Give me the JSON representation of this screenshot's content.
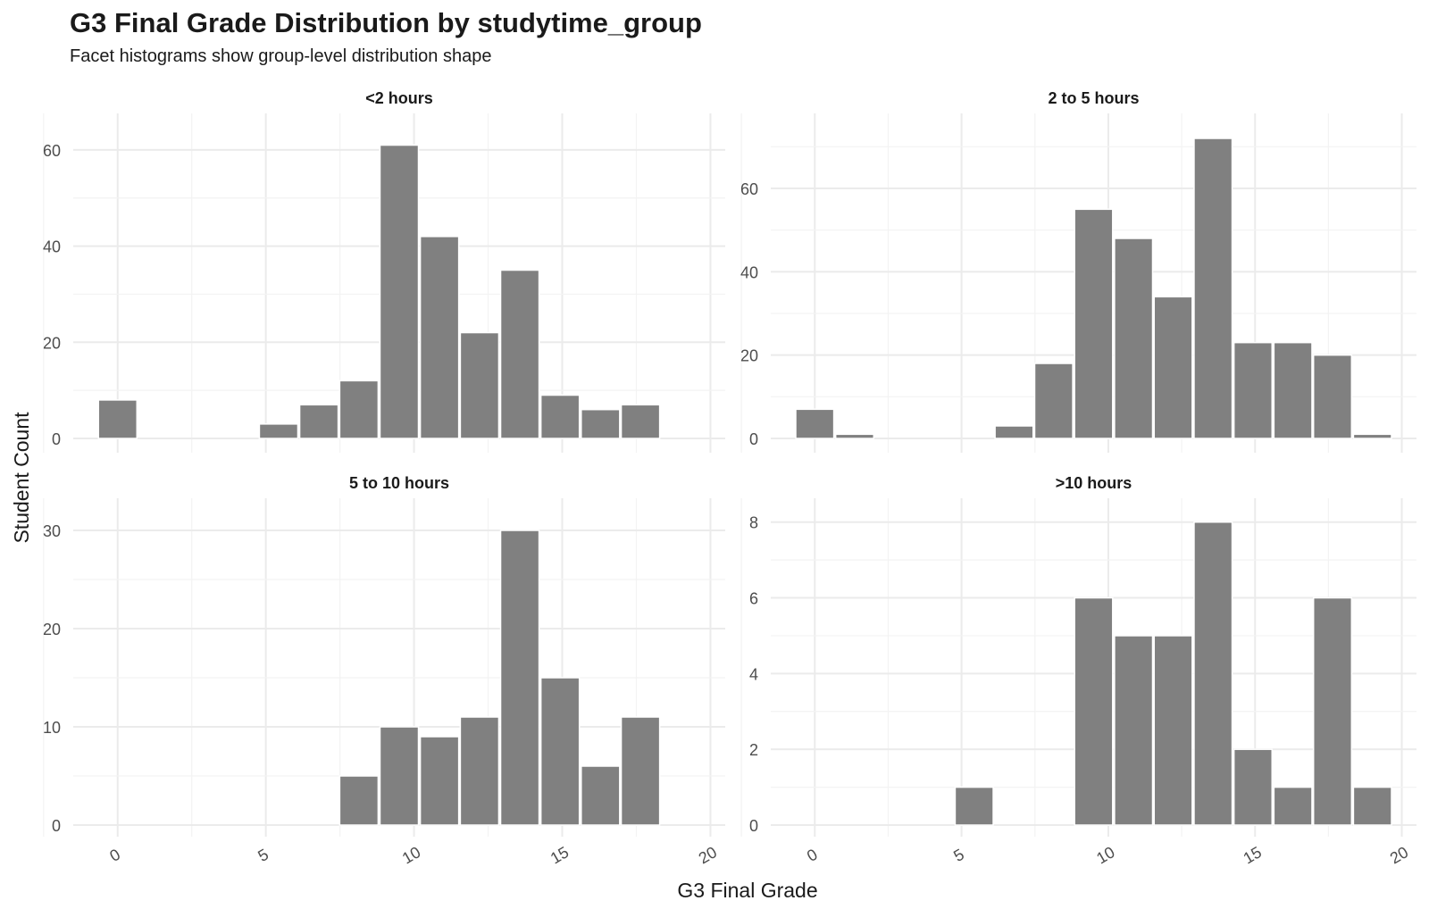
{
  "title": "G3 Final Grade Distribution by studytime_group",
  "subtitle": "Facet histograms show group-level distribution shape",
  "chart_data": {
    "type": "bar",
    "title": "G3 Final Grade Distribution by studytime_group",
    "subtitle": "Facet histograms show group-level distribution shape",
    "xlabel": "G3 Final Grade",
    "ylabel": "Student Count",
    "bin_width": 1.357,
    "xlim": [
      -1.5,
      20.5
    ],
    "x_ticks": [
      0,
      5,
      10,
      15,
      20
    ],
    "grid": true,
    "bar_color": "#808080",
    "facets": [
      {
        "name": "<2 hours",
        "ylim": [
          0,
          65
        ],
        "y_ticks": [
          0,
          20,
          40,
          60
        ],
        "bin_centers": [
          0,
          5.43,
          6.79,
          8.14,
          9.5,
          10.86,
          12.21,
          13.57,
          14.93,
          16.29,
          17.64
        ],
        "values": [
          8,
          3,
          7,
          12,
          61,
          42,
          22,
          35,
          9,
          6,
          7
        ]
      },
      {
        "name": "2 to 5 hours",
        "ylim": [
          0,
          75
        ],
        "y_ticks": [
          0,
          20,
          40,
          60
        ],
        "bin_centers": [
          0,
          1.36,
          6.79,
          8.14,
          9.5,
          10.86,
          12.21,
          13.57,
          14.93,
          16.29,
          17.64,
          19
        ],
        "values": [
          7,
          1,
          3,
          18,
          55,
          48,
          34,
          72,
          23,
          23,
          20,
          1
        ]
      },
      {
        "name": "5 to 10 hours",
        "ylim": [
          0,
          32
        ],
        "y_ticks": [
          0,
          10,
          20,
          30
        ],
        "bin_centers": [
          8.14,
          9.5,
          10.86,
          12.21,
          13.57,
          14.93,
          16.29,
          17.64
        ],
        "values": [
          5,
          10,
          9,
          11,
          30,
          15,
          6,
          11
        ]
      },
      {
        "name": ">10 hours",
        "ylim": [
          0,
          8.3
        ],
        "y_ticks": [
          0,
          2,
          4,
          6,
          8
        ],
        "bin_centers": [
          5.43,
          9.5,
          10.86,
          12.21,
          13.57,
          14.93,
          16.29,
          17.64,
          19
        ],
        "values": [
          1,
          6,
          5,
          5,
          8,
          2,
          1,
          6,
          1
        ]
      }
    ]
  }
}
